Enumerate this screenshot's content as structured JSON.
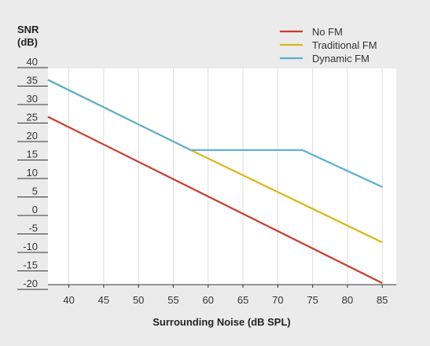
{
  "chart_data": {
    "type": "line",
    "ylabel_line1": "SNR",
    "ylabel_line2": "(dB)",
    "xlabel": "Surrounding Noise (dB SPL)",
    "xlim": [
      37,
      87
    ],
    "ylim": [
      -20,
      40
    ],
    "x_ticks": [
      40,
      45,
      50,
      55,
      60,
      65,
      70,
      75,
      80,
      85
    ],
    "y_ticks": [
      40,
      35,
      30,
      25,
      20,
      15,
      10,
      5,
      0,
      -5,
      -10,
      -15,
      -20
    ],
    "grid": "vertical",
    "legend_position": "top-right",
    "series": [
      {
        "name": "No FM",
        "color": "#cc3a2e",
        "x": [
          37,
          85
        ],
        "y": [
          25,
          -20
        ]
      },
      {
        "name": "Traditional FM",
        "color": "#dcb414",
        "x": [
          37,
          57.5,
          85
        ],
        "y": [
          35,
          16,
          -9
        ]
      },
      {
        "name": "Dynamic FM",
        "color": "#5aaed4",
        "x": [
          37,
          57.5,
          73.5,
          85
        ],
        "y": [
          35,
          16,
          16,
          6
        ]
      }
    ]
  }
}
